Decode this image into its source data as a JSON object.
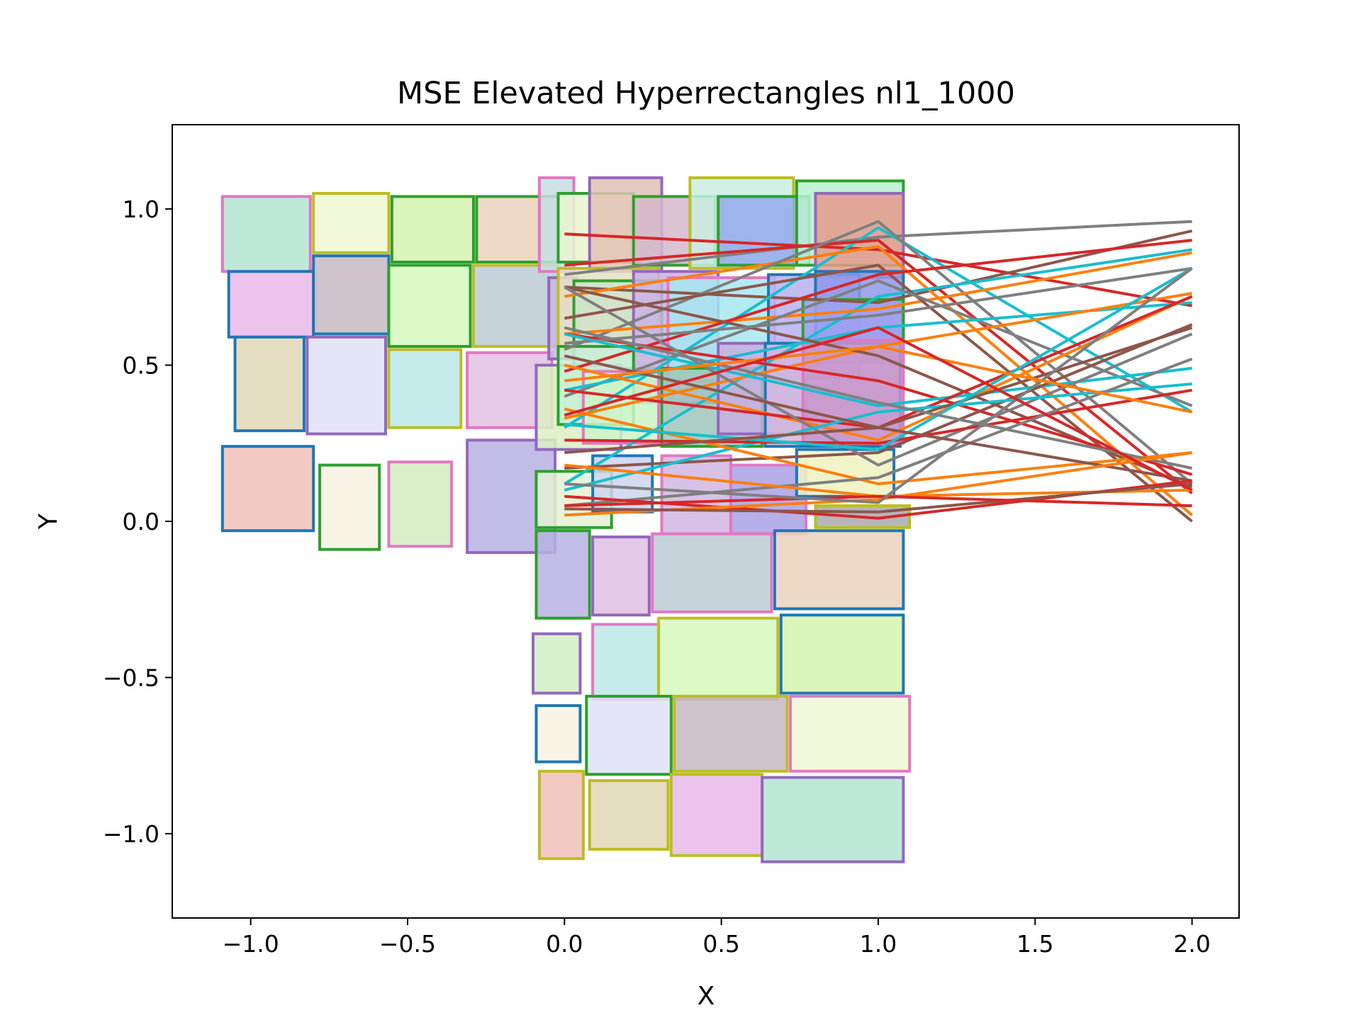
{
  "chart_data": {
    "type": "scatter",
    "title": "MSE Elevated Hyperrectangles nl1_1000",
    "xlabel": "X",
    "ylabel": "Y",
    "xlim": [
      -1.25,
      2.15
    ],
    "ylim": [
      -1.27,
      1.27
    ],
    "xticks": [
      -1.0,
      -0.5,
      0.0,
      0.5,
      1.0,
      1.5,
      2.0
    ],
    "yticks": [
      -1.0,
      -0.5,
      0.0,
      0.5,
      1.0
    ],
    "xtick_labels": [
      "−1.0",
      "−0.5",
      "0.0",
      "0.5",
      "1.0",
      "1.5",
      "2.0"
    ],
    "ytick_labels": [
      "−1.0",
      "−0.5",
      "0.0",
      "0.5",
      "1.0"
    ],
    "grid": false,
    "legend": "none",
    "palette": [
      "#1f77b4",
      "#ff7f0e",
      "#2ca02c",
      "#d62728",
      "#9467bd",
      "#8c564b",
      "#e377c2",
      "#7f7f7f",
      "#bcbd22",
      "#17becf"
    ],
    "rectangles": [
      {
        "x0": -1.09,
        "x1": -0.81,
        "y0": 0.8,
        "y1": 1.04,
        "edge": "#e377c2",
        "fill": "#b3e5d1"
      },
      {
        "x0": -0.8,
        "x1": -0.56,
        "y0": 0.86,
        "y1": 1.05,
        "edge": "#bcbd22",
        "fill": "#eef8d4"
      },
      {
        "x0": -0.55,
        "x1": -0.29,
        "y0": 0.83,
        "y1": 1.04,
        "edge": "#2ca02c",
        "fill": "#d5f3ae"
      },
      {
        "x0": -0.28,
        "x1": -0.02,
        "y0": 0.83,
        "y1": 1.04,
        "edge": "#2ca02c",
        "fill": "#ead2bc"
      },
      {
        "x0": -1.07,
        "x1": -0.8,
        "y0": 0.59,
        "y1": 0.8,
        "edge": "#1f77b4",
        "fill": "#e8b8ea"
      },
      {
        "x0": -0.8,
        "x1": -0.56,
        "y0": 0.6,
        "y1": 0.85,
        "edge": "#1f77b4",
        "fill": "#c5b8c2"
      },
      {
        "x0": -0.56,
        "x1": -0.3,
        "y0": 0.56,
        "y1": 0.82,
        "edge": "#2ca02c",
        "fill": "#d5f9bd"
      },
      {
        "x0": -0.29,
        "x1": -0.02,
        "y0": 0.56,
        "y1": 0.82,
        "edge": "#bcbd22",
        "fill": "#bccbd5"
      },
      {
        "x0": -1.05,
        "x1": -0.83,
        "y0": 0.29,
        "y1": 0.59,
        "edge": "#1f77b4",
        "fill": "#e0d7b7"
      },
      {
        "x0": -0.82,
        "x1": -0.57,
        "y0": 0.28,
        "y1": 0.59,
        "edge": "#9467bd",
        "fill": "#dfe2f7"
      },
      {
        "x0": -0.56,
        "x1": -0.33,
        "y0": 0.3,
        "y1": 0.55,
        "edge": "#bcbd22",
        "fill": "#bbe9e6"
      },
      {
        "x0": -0.31,
        "x1": -0.04,
        "y0": 0.3,
        "y1": 0.54,
        "edge": "#e377c2",
        "fill": "#e3c0e4"
      },
      {
        "x0": -1.09,
        "x1": -0.8,
        "y0": -0.03,
        "y1": 0.24,
        "edge": "#1f77b4",
        "fill": "#f1c0b8"
      },
      {
        "x0": -0.78,
        "x1": -0.59,
        "y0": -0.09,
        "y1": 0.18,
        "edge": "#2ca02c",
        "fill": "#f7f3e2"
      },
      {
        "x0": -0.56,
        "x1": -0.36,
        "y0": -0.08,
        "y1": 0.19,
        "edge": "#e377c2",
        "fill": "#d3ebc0"
      },
      {
        "x0": -0.31,
        "x1": -0.03,
        "y0": -0.1,
        "y1": 0.26,
        "edge": "#9467bd",
        "fill": "#b6b1e3"
      },
      {
        "x0": -0.08,
        "x1": 0.03,
        "y0": 0.8,
        "y1": 1.1,
        "edge": "#e377c2",
        "fill": "#c5dde3"
      },
      {
        "x0": -0.02,
        "x1": 0.22,
        "y0": 0.83,
        "y1": 1.05,
        "edge": "#2ca02c",
        "fill": "#e9f4cf"
      },
      {
        "x0": 0.08,
        "x1": 0.31,
        "y0": 0.8,
        "y1": 1.1,
        "edge": "#9467bd",
        "fill": "#e0c1b5"
      },
      {
        "x0": 0.22,
        "x1": 0.48,
        "y0": 0.82,
        "y1": 1.04,
        "edge": "#2ca02c",
        "fill": "#d5b9cb"
      },
      {
        "x0": 0.4,
        "x1": 0.73,
        "y0": 0.81,
        "y1": 1.1,
        "edge": "#bcbd22",
        "fill": "#c9eee3"
      },
      {
        "x0": 0.49,
        "x1": 0.78,
        "y0": 0.82,
        "y1": 1.04,
        "edge": "#2ca02c",
        "fill": "#94a9ec"
      },
      {
        "x0": 0.74,
        "x1": 1.08,
        "y0": 0.82,
        "y1": 1.09,
        "edge": "#2ca02c",
        "fill": "#b9f0d0"
      },
      {
        "x0": 0.8,
        "x1": 1.08,
        "y0": 0.78,
        "y1": 1.05,
        "edge": "#9467bd",
        "fill": "#e59a8c"
      },
      {
        "x0": -0.05,
        "x1": 0.04,
        "y0": 0.52,
        "y1": 0.78,
        "edge": "#9467bd",
        "fill": "#c8b6df"
      },
      {
        "x0": -0.02,
        "x1": 0.3,
        "y0": 0.55,
        "y1": 0.81,
        "edge": "#bcbd22",
        "fill": "#e8e1c4"
      },
      {
        "x0": 0.03,
        "x1": 0.31,
        "y0": 0.49,
        "y1": 0.77,
        "edge": "#2ca02c",
        "fill": "#cfe3c9"
      },
      {
        "x0": 0.22,
        "x1": 0.49,
        "y0": 0.38,
        "y1": 0.8,
        "edge": "#9467bd",
        "fill": "#c9b2e4"
      },
      {
        "x0": 0.33,
        "x1": 0.67,
        "y0": 0.45,
        "y1": 0.78,
        "edge": "#e377c2",
        "fill": "#a7e6f0"
      },
      {
        "x0": 0.65,
        "x1": 0.94,
        "y0": 0.46,
        "y1": 0.79,
        "edge": "#1f77b4",
        "fill": "#b6b2f1"
      },
      {
        "x0": 0.8,
        "x1": 1.08,
        "y0": 0.51,
        "y1": 0.8,
        "edge": "#1f77b4",
        "fill": "#8f98e8"
      },
      {
        "x0": 0.76,
        "x1": 1.08,
        "y0": 0.57,
        "y1": 0.71,
        "edge": "#2ca02c",
        "fill": "#9fa1f0"
      },
      {
        "x0": -0.09,
        "x1": 0.18,
        "y0": 0.23,
        "y1": 0.5,
        "edge": "#9467bd",
        "fill": "#d9f0c1"
      },
      {
        "x0": -0.02,
        "x1": 0.22,
        "y0": 0.31,
        "y1": 0.56,
        "edge": "#2ca02c",
        "fill": "#c7eed7"
      },
      {
        "x0": 0.06,
        "x1": 0.3,
        "y0": 0.25,
        "y1": 0.48,
        "edge": "#e377c2",
        "fill": "#cdf4c7"
      },
      {
        "x0": 0.31,
        "x1": 0.63,
        "y0": 0.24,
        "y1": 0.49,
        "edge": "#2ca02c",
        "fill": "#9fc6bc"
      },
      {
        "x0": 0.49,
        "x1": 0.77,
        "y0": 0.28,
        "y1": 0.57,
        "edge": "#9467bd",
        "fill": "#c7aee0"
      },
      {
        "x0": 0.64,
        "x1": 1.07,
        "y0": 0.24,
        "y1": 0.57,
        "edge": "#1f77b4",
        "fill": "#d1b7dd"
      },
      {
        "x0": 0.76,
        "x1": 1.08,
        "y0": 0.25,
        "y1": 0.58,
        "edge": "#e377c2",
        "fill": "#c894c9"
      },
      {
        "x0": -0.09,
        "x1": 0.15,
        "y0": -0.02,
        "y1": 0.16,
        "edge": "#2ca02c",
        "fill": "#e3f2d4"
      },
      {
        "x0": 0.09,
        "x1": 0.28,
        "y0": 0.03,
        "y1": 0.21,
        "edge": "#1f77b4",
        "fill": "#ccd4ec"
      },
      {
        "x0": 0.31,
        "x1": 0.53,
        "y0": -0.04,
        "y1": 0.21,
        "edge": "#e377c2",
        "fill": "#d1b6e2"
      },
      {
        "x0": 0.53,
        "x1": 0.77,
        "y0": -0.04,
        "y1": 0.18,
        "edge": "#e377c2",
        "fill": "#a9a1e6"
      },
      {
        "x0": 0.74,
        "x1": 1.05,
        "y0": 0.08,
        "y1": 0.23,
        "edge": "#1f77b4",
        "fill": "#eef2bf"
      },
      {
        "x0": 0.8,
        "x1": 1.1,
        "y0": -0.02,
        "y1": 0.05,
        "edge": "#bcbd22",
        "fill": "#a9a9b2"
      },
      {
        "x0": -0.09,
        "x1": 0.08,
        "y0": -0.31,
        "y1": -0.03,
        "edge": "#2ca02c",
        "fill": "#b7b2e3"
      },
      {
        "x0": 0.09,
        "x1": 0.27,
        "y0": -0.3,
        "y1": -0.05,
        "edge": "#9467bd",
        "fill": "#dfc0e3"
      },
      {
        "x0": 0.28,
        "x1": 0.66,
        "y0": -0.29,
        "y1": -0.04,
        "edge": "#e377c2",
        "fill": "#bccbd5"
      },
      {
        "x0": 0.67,
        "x1": 1.08,
        "y0": -0.28,
        "y1": -0.03,
        "edge": "#1f77b4",
        "fill": "#ead2bc"
      },
      {
        "x0": -0.1,
        "x1": 0.05,
        "y0": -0.55,
        "y1": -0.36,
        "edge": "#9467bd",
        "fill": "#d1eec3"
      },
      {
        "x0": 0.09,
        "x1": 0.3,
        "y0": -0.57,
        "y1": -0.33,
        "edge": "#e377c2",
        "fill": "#bbe9e6"
      },
      {
        "x0": 0.3,
        "x1": 0.68,
        "y0": -0.57,
        "y1": -0.31,
        "edge": "#bcbd22",
        "fill": "#d5f9bd"
      },
      {
        "x0": 0.69,
        "x1": 1.08,
        "y0": -0.55,
        "y1": -0.3,
        "edge": "#1f77b4",
        "fill": "#d6f3ae"
      },
      {
        "x0": -0.09,
        "x1": 0.05,
        "y0": -0.77,
        "y1": -0.59,
        "edge": "#1f77b4",
        "fill": "#f7f3e2"
      },
      {
        "x0": 0.07,
        "x1": 0.34,
        "y0": -0.81,
        "y1": -0.56,
        "edge": "#2ca02c",
        "fill": "#dfe2f7"
      },
      {
        "x0": 0.35,
        "x1": 0.71,
        "y0": -0.8,
        "y1": -0.56,
        "edge": "#bcbd22",
        "fill": "#c5b8c2"
      },
      {
        "x0": 0.72,
        "x1": 1.1,
        "y0": -0.8,
        "y1": -0.56,
        "edge": "#e377c2",
        "fill": "#eef8d4"
      },
      {
        "x0": -0.08,
        "x1": 0.06,
        "y0": -1.08,
        "y1": -0.8,
        "edge": "#bcbd22",
        "fill": "#f1c0b8"
      },
      {
        "x0": 0.08,
        "x1": 0.33,
        "y0": -1.05,
        "y1": -0.83,
        "edge": "#bcbd22",
        "fill": "#e0d7b7"
      },
      {
        "x0": 0.34,
        "x1": 0.63,
        "y0": -1.07,
        "y1": -0.81,
        "edge": "#bcbd22",
        "fill": "#e8b8ea"
      },
      {
        "x0": 0.63,
        "x1": 1.08,
        "y0": -1.09,
        "y1": -0.82,
        "edge": "#9467bd",
        "fill": "#b3e5d1"
      }
    ],
    "series": [
      {
        "color": "#7f7f7f",
        "x": [
          0,
          1,
          2
        ],
        "y": [
          0.79,
          0.91,
          0.96
        ]
      },
      {
        "color": "#d62728",
        "x": [
          0,
          1,
          2
        ],
        "y": [
          0.92,
          0.87,
          0.69
        ]
      },
      {
        "color": "#8c564b",
        "x": [
          0,
          1,
          2
        ],
        "y": [
          0.75,
          0.7,
          0.93
        ]
      },
      {
        "color": "#17becf",
        "x": [
          0,
          1,
          2
        ],
        "y": [
          0.3,
          0.94,
          0.35
        ]
      },
      {
        "color": "#ff7f0e",
        "x": [
          0,
          1,
          2
        ],
        "y": [
          0.72,
          0.88,
          0.02
        ]
      },
      {
        "color": "#d62728",
        "x": [
          0,
          1,
          2
        ],
        "y": [
          0.82,
          0.9,
          0.09
        ]
      },
      {
        "color": "#7f7f7f",
        "x": [
          0,
          1,
          2
        ],
        "y": [
          0.55,
          0.96,
          0.12
        ]
      },
      {
        "color": "#17becf",
        "x": [
          0,
          1,
          2
        ],
        "y": [
          0.12,
          0.72,
          0.87
        ]
      },
      {
        "color": "#ff7f0e",
        "x": [
          0,
          1,
          2
        ],
        "y": [
          0.6,
          0.68,
          0.86
        ]
      },
      {
        "color": "#8c564b",
        "x": [
          0,
          1,
          2
        ],
        "y": [
          0.65,
          0.82,
          0.0
        ]
      },
      {
        "color": "#d62728",
        "x": [
          0,
          1,
          2
        ],
        "y": [
          0.48,
          0.79,
          0.9
        ]
      },
      {
        "color": "#7f7f7f",
        "x": [
          0,
          1,
          2
        ],
        "y": [
          0.4,
          0.77,
          0.37
        ]
      },
      {
        "color": "#17becf",
        "x": [
          0,
          1,
          2
        ],
        "y": [
          0.42,
          0.62,
          0.7
        ]
      },
      {
        "color": "#ff7f0e",
        "x": [
          0,
          1,
          2
        ],
        "y": [
          0.33,
          0.56,
          0.73
        ]
      },
      {
        "color": "#8c564b",
        "x": [
          0,
          1,
          2
        ],
        "y": [
          0.75,
          0.53,
          0.11
        ]
      },
      {
        "color": "#d62728",
        "x": [
          0,
          1,
          2
        ],
        "y": [
          0.6,
          0.45,
          0.15
        ]
      },
      {
        "color": "#7f7f7f",
        "x": [
          0,
          1,
          2
        ],
        "y": [
          0.57,
          0.66,
          0.81
        ]
      },
      {
        "color": "#17becf",
        "x": [
          0,
          1,
          2
        ],
        "y": [
          0.6,
          0.37,
          0.49
        ]
      },
      {
        "color": "#ff7f0e",
        "x": [
          0,
          1,
          2
        ],
        "y": [
          0.5,
          0.26,
          0.72
        ]
      },
      {
        "color": "#8c564b",
        "x": [
          0,
          1,
          2
        ],
        "y": [
          0.17,
          0.22,
          0.63
        ]
      },
      {
        "color": "#d62728",
        "x": [
          0,
          1,
          2
        ],
        "y": [
          0.42,
          0.3,
          0.72
        ]
      },
      {
        "color": "#7f7f7f",
        "x": [
          0,
          1,
          2
        ],
        "y": [
          0.75,
          0.18,
          0.6
        ]
      },
      {
        "color": "#17becf",
        "x": [
          0,
          1,
          2
        ],
        "y": [
          0.1,
          0.35,
          0.44
        ]
      },
      {
        "color": "#ff7f0e",
        "x": [
          0,
          1,
          2
        ],
        "y": [
          0.36,
          0.12,
          0.22
        ]
      },
      {
        "color": "#8c564b",
        "x": [
          0,
          1,
          2
        ],
        "y": [
          0.53,
          0.3,
          0.62
        ]
      },
      {
        "color": "#d62728",
        "x": [
          0,
          1,
          2
        ],
        "y": [
          0.26,
          0.25,
          0.42
        ]
      },
      {
        "color": "#7f7f7f",
        "x": [
          0,
          1,
          2
        ],
        "y": [
          0.05,
          0.14,
          0.52
        ]
      },
      {
        "color": "#17becf",
        "x": [
          0,
          1,
          2
        ],
        "y": [
          0.31,
          0.23,
          0.81
        ]
      },
      {
        "color": "#ff7f0e",
        "x": [
          0,
          1,
          2
        ],
        "y": [
          0.18,
          0.08,
          0.1
        ]
      },
      {
        "color": "#8c564b",
        "x": [
          0,
          1,
          2
        ],
        "y": [
          0.22,
          0.3,
          0.13
        ]
      },
      {
        "color": "#d62728",
        "x": [
          0,
          1,
          2
        ],
        "y": [
          0.08,
          0.01,
          0.13
        ]
      },
      {
        "color": "#7f7f7f",
        "x": [
          0,
          1,
          2
        ],
        "y": [
          0.62,
          0.38,
          0.17
        ]
      },
      {
        "color": "#ff7f0e",
        "x": [
          0,
          1,
          2
        ],
        "y": [
          0.02,
          0.07,
          0.22
        ]
      },
      {
        "color": "#8c564b",
        "x": [
          0,
          1,
          2
        ],
        "y": [
          0.04,
          0.03,
          0.12
        ]
      },
      {
        "color": "#d62728",
        "x": [
          0,
          1,
          2
        ],
        "y": [
          0.05,
          0.08,
          0.05
        ]
      },
      {
        "color": "#7f7f7f",
        "x": [
          0,
          1,
          2
        ],
        "y": [
          0.12,
          0.06,
          0.81
        ]
      },
      {
        "color": "#ff7f0e",
        "x": [
          0,
          1,
          2
        ],
        "y": [
          0.45,
          0.56,
          0.35
        ]
      },
      {
        "color": "#d62728",
        "x": [
          0,
          1,
          2
        ],
        "y": [
          0.34,
          0.62,
          0.1
        ]
      }
    ]
  }
}
